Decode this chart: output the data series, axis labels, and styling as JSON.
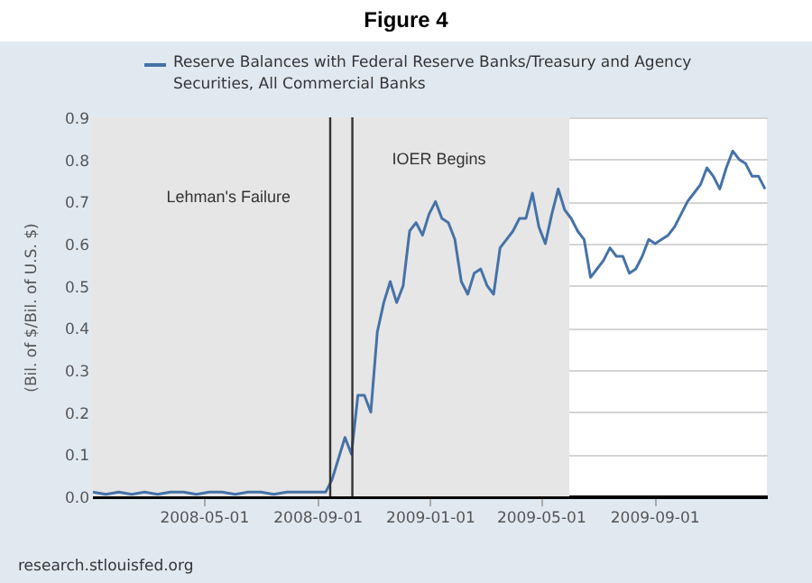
{
  "chart_data": {
    "type": "line",
    "title": "Figure 4",
    "ylabel": "(Bil. of $/Bil. of U.S. $)",
    "annotations": [
      "research.stlouisfed.org"
    ],
    "x": [
      "2008-01-02",
      "2008-01-16",
      "2008-01-30",
      "2008-02-13",
      "2008-02-27",
      "2008-03-12",
      "2008-03-26",
      "2008-04-09",
      "2008-04-23",
      "2008-05-07",
      "2008-05-21",
      "2008-06-04",
      "2008-06-18",
      "2008-07-02",
      "2008-07-16",
      "2008-07-30",
      "2008-08-13",
      "2008-08-27",
      "2008-09-10",
      "2008-09-17",
      "2008-09-24",
      "2008-10-01",
      "2008-10-08",
      "2008-10-15",
      "2008-10-22",
      "2008-10-29",
      "2008-11-05",
      "2008-11-12",
      "2008-11-19",
      "2008-11-26",
      "2008-12-03",
      "2008-12-10",
      "2008-12-17",
      "2008-12-24",
      "2008-12-31",
      "2009-01-07",
      "2009-01-14",
      "2009-01-21",
      "2009-01-28",
      "2009-02-04",
      "2009-02-11",
      "2009-02-18",
      "2009-02-25",
      "2009-03-04",
      "2009-03-11",
      "2009-03-18",
      "2009-03-25",
      "2009-04-01",
      "2009-04-08",
      "2009-04-15",
      "2009-04-22",
      "2009-04-29",
      "2009-05-06",
      "2009-05-13",
      "2009-05-20",
      "2009-05-27",
      "2009-06-03",
      "2009-06-10",
      "2009-06-17",
      "2009-06-24",
      "2009-07-01",
      "2009-07-08",
      "2009-07-15",
      "2009-07-22",
      "2009-07-29",
      "2009-08-05",
      "2009-08-12",
      "2009-08-19",
      "2009-08-26",
      "2009-09-02",
      "2009-09-09",
      "2009-09-16",
      "2009-09-23",
      "2009-09-30",
      "2009-10-07",
      "2009-10-14",
      "2009-10-21",
      "2009-10-28",
      "2009-11-04",
      "2009-11-11",
      "2009-11-18",
      "2009-11-25",
      "2009-12-02",
      "2009-12-09",
      "2009-12-16",
      "2009-12-23",
      "2009-12-30"
    ],
    "series": [
      {
        "name": "Reserve Balances with Federal Reserve Banks/Treasury and Agency Securities, All Commercial Banks",
        "color": "#4572a7",
        "values": [
          0.01,
          0.005,
          0.01,
          0.005,
          0.01,
          0.005,
          0.01,
          0.01,
          0.005,
          0.01,
          0.01,
          0.005,
          0.01,
          0.01,
          0.005,
          0.01,
          0.01,
          0.01,
          0.01,
          0.04,
          0.09,
          0.14,
          0.1,
          0.24,
          0.24,
          0.2,
          0.39,
          0.46,
          0.51,
          0.46,
          0.5,
          0.63,
          0.65,
          0.62,
          0.67,
          0.7,
          0.66,
          0.65,
          0.61,
          0.51,
          0.48,
          0.53,
          0.54,
          0.5,
          0.48,
          0.59,
          0.61,
          0.63,
          0.66,
          0.66,
          0.72,
          0.64,
          0.6,
          0.67,
          0.73,
          0.68,
          0.66,
          0.63,
          0.61,
          0.52,
          0.54,
          0.56,
          0.59,
          0.57,
          0.57,
          0.53,
          0.54,
          0.57,
          0.61,
          0.6,
          0.61,
          0.62,
          0.64,
          0.67,
          0.7,
          0.72,
          0.74,
          0.78,
          0.76,
          0.73,
          0.78,
          0.82,
          0.8,
          0.79,
          0.76,
          0.76,
          0.73
        ]
      }
    ],
    "xlim": [
      "2008-01-01",
      "2010-01-01"
    ],
    "xticks": [
      "2008-05-01",
      "2008-09-01",
      "2009-01-01",
      "2009-05-01",
      "2009-09-01"
    ],
    "ylim": [
      0,
      0.9
    ],
    "yticks": [
      {
        "value": 0,
        "label": "0.0"
      },
      0.1,
      0.2,
      0.3,
      0.4,
      0.5,
      0.6,
      0.7,
      0.8,
      0.9
    ],
    "ref_lines": [
      {
        "axis": "x",
        "value": "2008-09-15",
        "label": "Lehman's Failure"
      },
      {
        "axis": "x",
        "value": "2008-10-09",
        "label": "IOER Begins"
      }
    ],
    "bands": [
      {
        "axis": "x",
        "from": "2008-01-01",
        "to": "2009-06-01",
        "color": "#e6e6e6"
      }
    ],
    "grid": "y",
    "legend": "top",
    "line_style": "solid",
    "marker": "none"
  }
}
